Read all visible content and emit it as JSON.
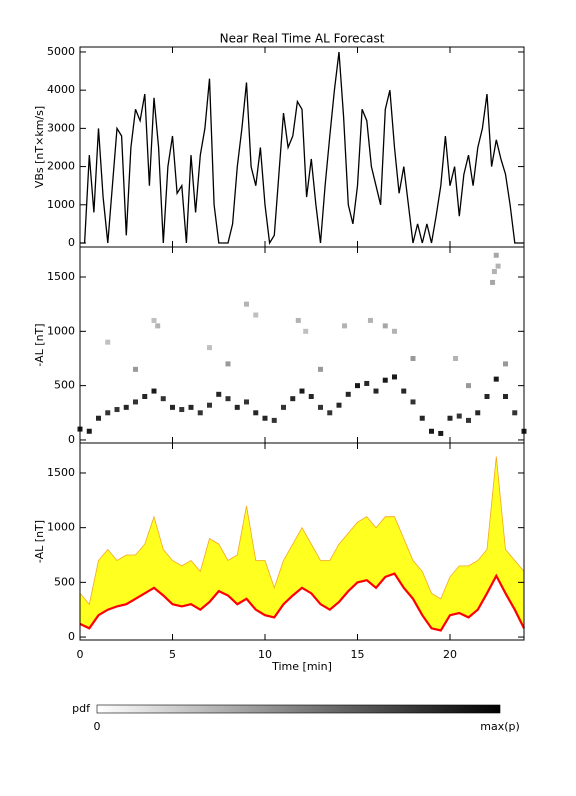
{
  "chart_data": [
    {
      "type": "line",
      "title": "Near Real Time AL Forecast",
      "ylabel": "VBs [nT×km/s]",
      "xlim": [
        0,
        24
      ],
      "xticks": [
        0,
        5,
        10,
        15,
        20
      ],
      "show_xtick_labels": false,
      "ylim": [
        -105,
        5130
      ],
      "yticks": [
        0,
        1000,
        2000,
        3000,
        4000,
        5000
      ],
      "series": [
        {
          "color": "#000000",
          "x": [
            0,
            0.25,
            0.5,
            0.75,
            1,
            1.25,
            1.5,
            1.75,
            2,
            2.25,
            2.5,
            2.75,
            3,
            3.25,
            3.5,
            3.75,
            4,
            4.25,
            4.5,
            4.75,
            5,
            5.25,
            5.5,
            5.75,
            6,
            6.25,
            6.5,
            6.75,
            7,
            7.25,
            7.5,
            7.75,
            8,
            8.25,
            8.5,
            8.75,
            9,
            9.25,
            9.5,
            9.75,
            10,
            10.25,
            10.5,
            10.75,
            11,
            11.25,
            11.5,
            11.75,
            12,
            12.25,
            12.5,
            12.75,
            13,
            13.25,
            13.5,
            13.75,
            14,
            14.25,
            14.5,
            14.75,
            15,
            15.25,
            15.5,
            15.75,
            16,
            16.25,
            16.5,
            16.75,
            17,
            17.25,
            17.5,
            17.75,
            18,
            18.25,
            18.5,
            18.75,
            19,
            19.25,
            19.5,
            19.75,
            20,
            20.25,
            20.5,
            20.75,
            21,
            21.25,
            21.5,
            21.75,
            22,
            22.25,
            22.5,
            22.75,
            23,
            23.25,
            23.5,
            23.75,
            24
          ],
          "values": [
            0,
            0,
            2300,
            800,
            3000,
            1200,
            0,
            1500,
            3000,
            2800,
            200,
            2500,
            3500,
            3200,
            3900,
            1500,
            3800,
            2500,
            0,
            2000,
            2800,
            1300,
            1500,
            0,
            2300,
            800,
            2300,
            3000,
            4300,
            1000,
            0,
            0,
            0,
            500,
            2000,
            3000,
            4200,
            2000,
            1500,
            2500,
            1000,
            0,
            200,
            1800,
            3400,
            2500,
            2800,
            3700,
            3500,
            1200,
            2200,
            1000,
            0,
            1500,
            2800,
            4000,
            5000,
            3300,
            1000,
            500,
            1500,
            3500,
            3200,
            2000,
            1500,
            1000,
            3500,
            4000,
            2500,
            1300,
            2000,
            1000,
            0,
            500,
            0,
            500,
            0,
            700,
            1500,
            2800,
            1500,
            2000,
            700,
            1800,
            2300,
            1500,
            2500,
            3000,
            3900,
            2000,
            2700,
            2200,
            1800,
            1000,
            0,
            0,
            0
          ]
        }
      ]
    },
    {
      "type": "scatter",
      "ylabel": "-AL [nT]",
      "xlim": [
        0,
        24
      ],
      "xticks": [
        0,
        5,
        10,
        15,
        20
      ],
      "show_xtick_labels": false,
      "ylim": [
        -28,
        1776
      ],
      "yticks": [
        0,
        500,
        1000,
        1500
      ],
      "x": [
        0,
        0.5,
        1,
        1.5,
        2,
        2.5,
        3,
        3.5,
        4,
        4.5,
        5,
        5.5,
        6,
        6.5,
        7,
        7.5,
        8,
        8.5,
        9,
        9.5,
        10,
        10.5,
        11,
        11.5,
        12,
        12.5,
        13,
        13.5,
        14,
        14.5,
        15,
        15.5,
        16,
        16.5,
        17,
        17.5,
        18,
        18.5,
        19,
        19.5,
        20,
        20.5,
        21,
        21.5,
        22,
        22.5,
        23,
        23.5,
        24,
        1.5,
        4,
        4.2,
        7,
        9,
        9.5,
        11.8,
        12.2,
        14.3,
        15.7,
        16.5,
        17,
        20.3,
        22.3,
        22.4,
        22.5,
        22.6,
        3,
        8,
        13,
        18,
        21,
        23
      ],
      "values": [
        100,
        80,
        200,
        250,
        280,
        300,
        350,
        400,
        450,
        380,
        300,
        280,
        300,
        250,
        320,
        420,
        380,
        300,
        350,
        250,
        200,
        180,
        300,
        380,
        450,
        400,
        300,
        250,
        320,
        420,
        500,
        520,
        450,
        550,
        580,
        450,
        350,
        200,
        80,
        60,
        200,
        220,
        180,
        250,
        400,
        560,
        400,
        250,
        80,
        900,
        1100,
        1050,
        850,
        1250,
        1150,
        1100,
        1000,
        1050,
        1100,
        1050,
        1000,
        750,
        1450,
        1550,
        1700,
        1600,
        650,
        700,
        650,
        750,
        500,
        700
      ],
      "density": [
        0.9,
        0.9,
        0.85,
        0.8,
        0.8,
        0.85,
        0.8,
        0.85,
        0.9,
        0.8,
        0.85,
        0.8,
        0.85,
        0.8,
        0.8,
        0.85,
        0.8,
        0.85,
        0.8,
        0.85,
        0.85,
        0.8,
        0.8,
        0.85,
        0.9,
        0.85,
        0.8,
        0.8,
        0.85,
        0.85,
        0.9,
        0.85,
        0.85,
        0.9,
        0.9,
        0.85,
        0.8,
        0.85,
        0.9,
        0.9,
        0.85,
        0.8,
        0.8,
        0.85,
        0.85,
        0.9,
        0.85,
        0.8,
        0.9,
        0.25,
        0.25,
        0.3,
        0.25,
        0.3,
        0.25,
        0.3,
        0.25,
        0.3,
        0.3,
        0.35,
        0.3,
        0.3,
        0.35,
        0.3,
        0.35,
        0.3,
        0.4,
        0.4,
        0.4,
        0.4,
        0.4,
        0.4
      ]
    },
    {
      "type": "band",
      "ylabel": "-AL [nT]",
      "xlabel": "Time [min]",
      "xlim": [
        0,
        24
      ],
      "xticks": [
        0,
        5,
        10,
        15,
        20
      ],
      "show_xtick_labels": true,
      "ylim": [
        -27,
        1774
      ],
      "yticks": [
        0,
        500,
        1000,
        1500
      ],
      "fill_color": "#ffff20",
      "x": [
        0,
        0.5,
        1,
        1.5,
        2,
        2.5,
        3,
        3.5,
        4,
        4.5,
        5,
        5.5,
        6,
        6.5,
        7,
        7.5,
        8,
        8.5,
        9,
        9.5,
        10,
        10.5,
        11,
        11.5,
        12,
        12.5,
        13,
        13.5,
        14,
        14.5,
        15,
        15.5,
        16,
        16.5,
        17,
        17.5,
        18,
        18.5,
        19,
        19.5,
        20,
        20.5,
        21,
        21.5,
        22,
        22.5,
        23,
        23.5,
        24
      ],
      "series": [
        {
          "color": "#ff0000",
          "values": [
            120,
            80,
            200,
            250,
            280,
            300,
            350,
            400,
            450,
            380,
            300,
            280,
            300,
            250,
            320,
            420,
            380,
            300,
            350,
            250,
            200,
            180,
            300,
            380,
            450,
            400,
            300,
            250,
            320,
            420,
            500,
            520,
            450,
            550,
            580,
            450,
            350,
            200,
            80,
            60,
            200,
            220,
            180,
            250,
            400,
            560,
            400,
            250,
            80
          ]
        },
        {
          "color": "#f5a623",
          "values": [
            400,
            300,
            700,
            800,
            700,
            750,
            750,
            850,
            1100,
            800,
            700,
            650,
            700,
            600,
            900,
            850,
            700,
            750,
            1200,
            700,
            700,
            450,
            700,
            850,
            1000,
            850,
            700,
            700,
            850,
            950,
            1050,
            1100,
            1000,
            1100,
            1100,
            900,
            700,
            600,
            400,
            350,
            550,
            650,
            650,
            700,
            800,
            1650,
            800,
            700,
            600
          ]
        }
      ]
    }
  ],
  "colorbar": {
    "label": "pdf",
    "min_label": "0",
    "max_label": "max(p)"
  }
}
